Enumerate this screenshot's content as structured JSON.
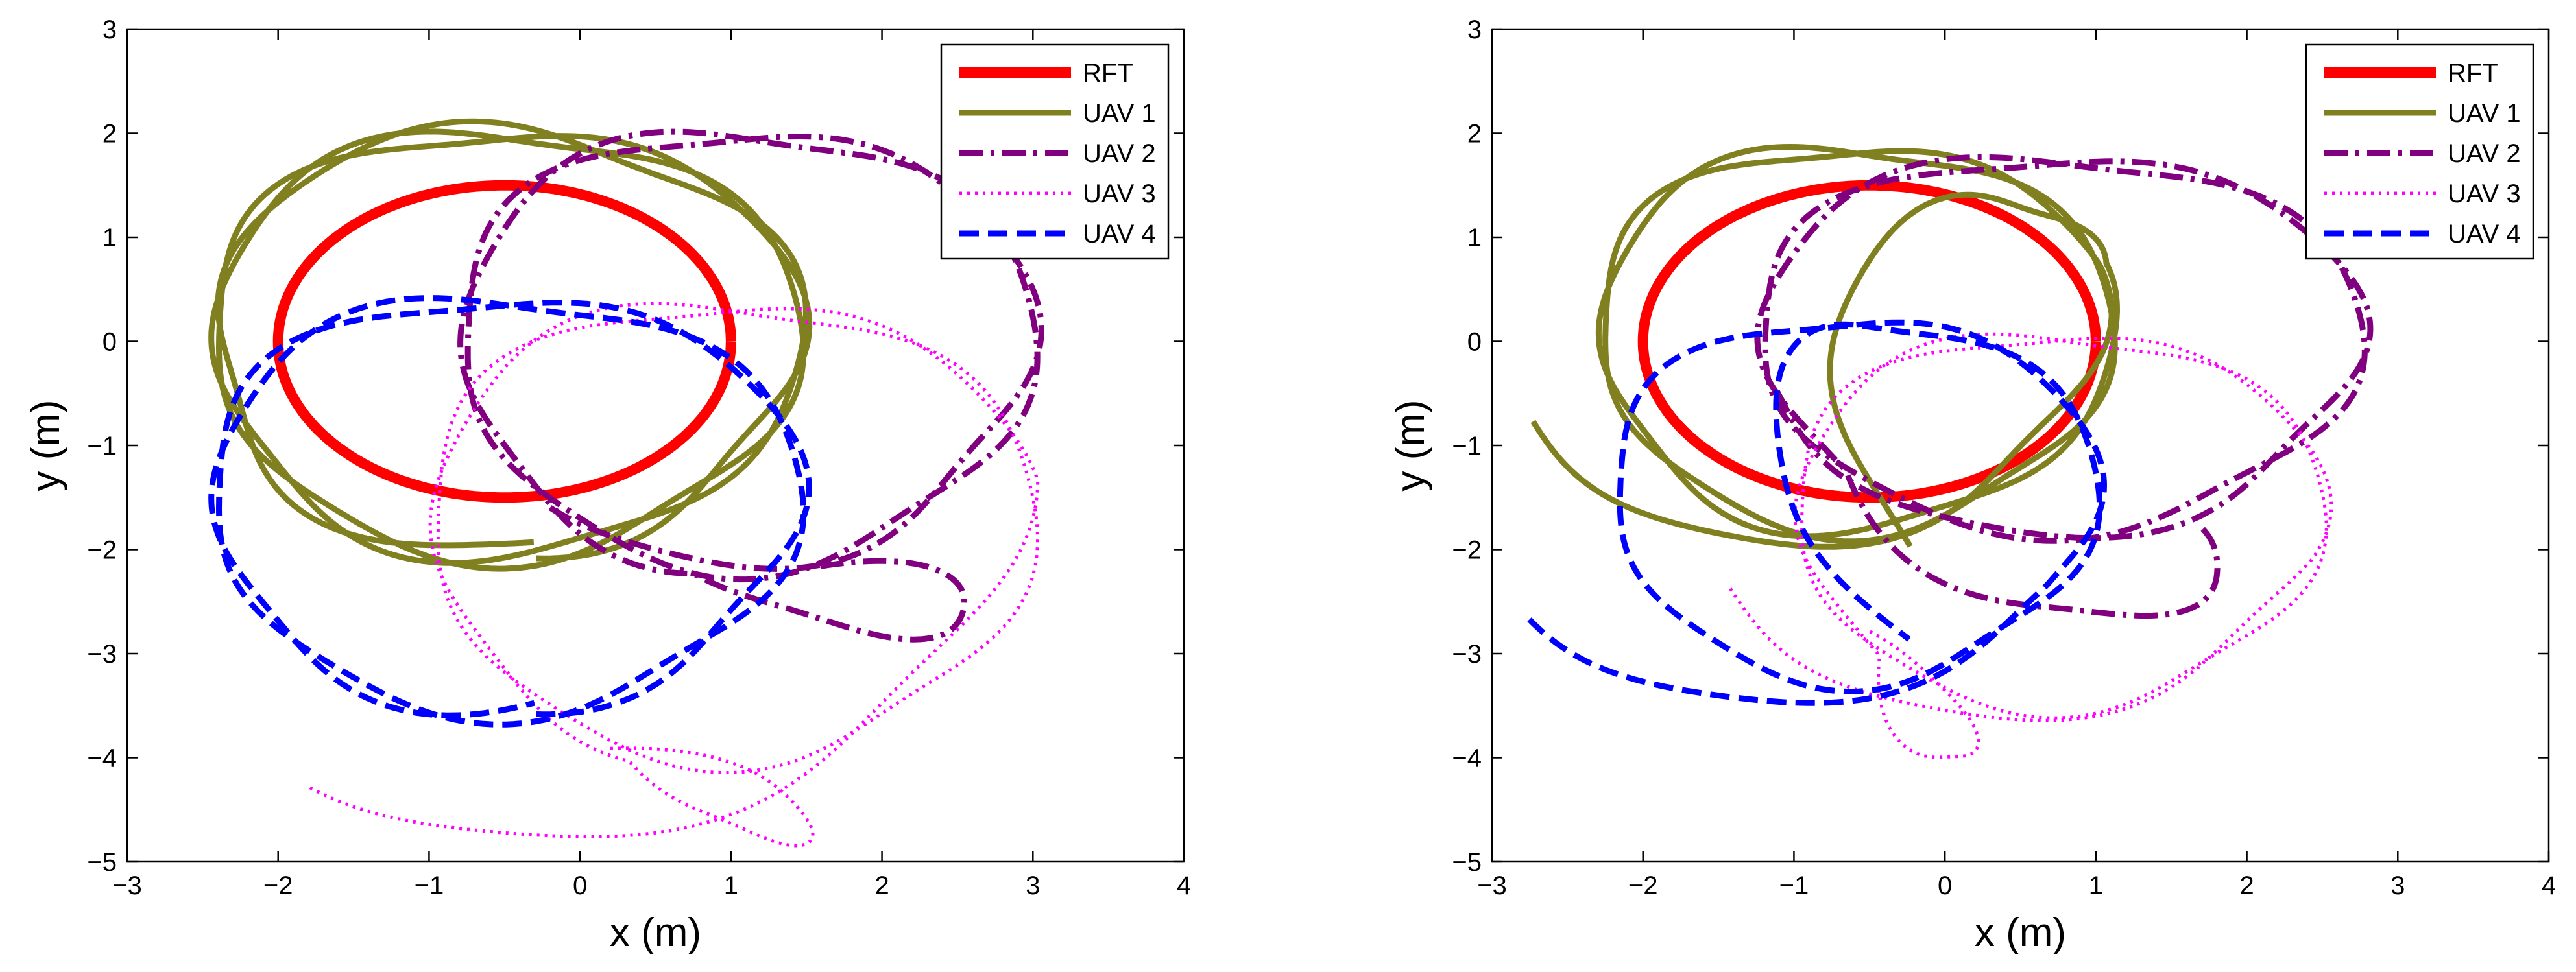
{
  "chart_data": [
    {
      "type": "line",
      "panel": "left",
      "xlabel": "x (m)",
      "ylabel": "y (m)",
      "xlim": [
        -3,
        4
      ],
      "ylim": [
        -5,
        3
      ],
      "xticks": [
        -3,
        -2,
        -1,
        0,
        1,
        2,
        3,
        4
      ],
      "yticks": [
        -5,
        -4,
        -3,
        -2,
        -1,
        0,
        1,
        2,
        3
      ],
      "grid": false,
      "legend_position": "top-right",
      "series": [
        {
          "name": "RFT",
          "color": "#ff0000",
          "style": "solid-thick",
          "trajectory": {
            "kind": "ellipse",
            "cx": -0.5,
            "cy": 0.0,
            "rx": 1.5,
            "ry": 1.5,
            "revolutions": 1
          }
        },
        {
          "name": "UAV 1",
          "color": "#808020",
          "style": "solid",
          "trajectory": {
            "kind": "orbit",
            "cx": -0.5,
            "cy": 0.0,
            "rx": 1.95,
            "ry": 2.05,
            "revolutions": 3,
            "start": [
              -0.3,
              -2.0
            ],
            "end": [
              -0.3,
              -2.0
            ]
          }
        },
        {
          "name": "UAV 2",
          "color": "#800080",
          "style": "dashdot",
          "trajectory": {
            "kind": "orbit",
            "cx": 1.1,
            "cy": -0.05,
            "rx": 1.9,
            "ry": 2.1,
            "revolutions": 2.5,
            "start": [
              -0.2,
              -1.6
            ],
            "end": [
              1.6,
              -2.1
            ]
          }
        },
        {
          "name": "UAV 3",
          "color": "#ff00ff",
          "style": "dotted",
          "trajectory": {
            "kind": "orbit",
            "cx": 1.0,
            "cy": -1.8,
            "rx": 2.0,
            "ry": 2.2,
            "revolutions": 2.5,
            "start": [
              -1.8,
              -4.3
            ],
            "end": [
              0.2,
              -3.9
            ]
          }
        },
        {
          "name": "UAV 4",
          "color": "#0000ff",
          "style": "dashed",
          "trajectory": {
            "kind": "orbit",
            "cx": -0.5,
            "cy": -1.55,
            "rx": 1.95,
            "ry": 2.0,
            "revolutions": 2,
            "start": [
              -0.3,
              -3.5
            ],
            "end": [
              -0.3,
              -3.5
            ]
          }
        }
      ]
    },
    {
      "type": "line",
      "panel": "right",
      "xlabel": "x (m)",
      "ylabel": "y (m)",
      "xlim": [
        -3,
        4
      ],
      "ylim": [
        -5,
        3
      ],
      "xticks": [
        -3,
        -2,
        -1,
        0,
        1,
        2,
        3,
        4
      ],
      "yticks": [
        -5,
        -4,
        -3,
        -2,
        -1,
        0,
        1,
        2,
        3
      ],
      "grid": false,
      "legend_position": "top-right",
      "series": [
        {
          "name": "RFT",
          "color": "#ff0000",
          "style": "solid-thick",
          "trajectory": {
            "kind": "ellipse",
            "cx": -0.5,
            "cy": 0.0,
            "rx": 1.5,
            "ry": 1.5,
            "revolutions": 1
          }
        },
        {
          "name": "UAV 1",
          "color": "#808020",
          "style": "solid",
          "trajectory": {
            "kind": "orbit",
            "cx": -0.6,
            "cy": 0.05,
            "rx": 1.7,
            "ry": 1.85,
            "revolutions": 3,
            "start": [
              -2.8,
              -0.8
            ],
            "end": [
              -0.3,
              -2.0
            ]
          }
        },
        {
          "name": "UAV 2",
          "color": "#800080",
          "style": "dashdot",
          "trajectory": {
            "kind": "orbit",
            "cx": 0.75,
            "cy": 0.0,
            "rx": 2.0,
            "ry": 1.8,
            "revolutions": 2.5,
            "start": [
              -1.2,
              -0.5
            ],
            "end": [
              1.6,
              -1.8
            ]
          }
        },
        {
          "name": "UAV 3",
          "color": "#ff00ff",
          "style": "dotted",
          "trajectory": {
            "kind": "orbit",
            "cx": 0.75,
            "cy": -1.7,
            "rx": 1.75,
            "ry": 1.8,
            "revolutions": 2.5,
            "start": [
              -1.5,
              -2.4
            ],
            "end": [
              -0.6,
              -2.8
            ]
          }
        },
        {
          "name": "UAV 4",
          "color": "#0000ff",
          "style": "dashed",
          "trajectory": {
            "kind": "orbit",
            "cx": -0.6,
            "cy": -1.5,
            "rx": 1.6,
            "ry": 1.75,
            "revolutions": 2,
            "start": [
              -2.8,
              -2.7
            ],
            "end": [
              -0.3,
              -2.9
            ]
          }
        }
      ]
    }
  ]
}
